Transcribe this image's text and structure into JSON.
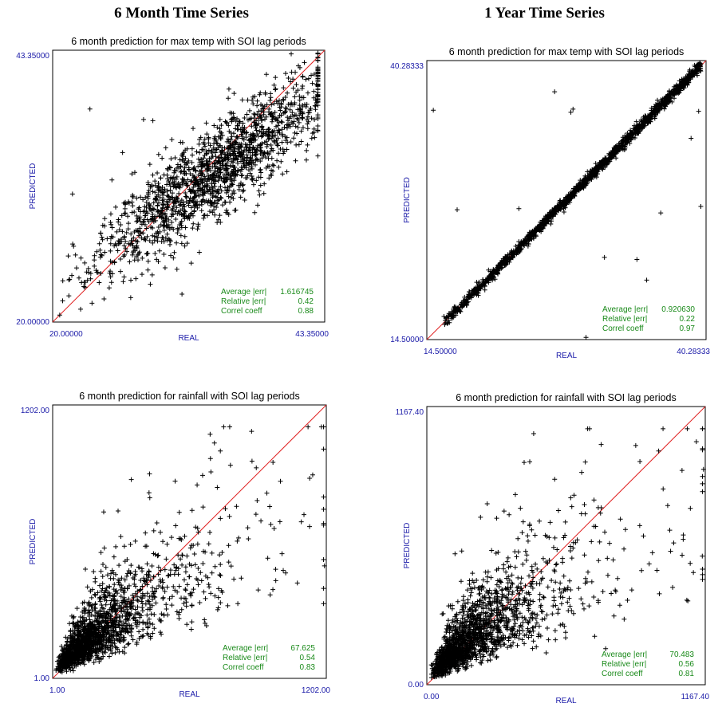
{
  "headings": {
    "left": "6 Month Time Series",
    "right": "1 Year Time Series"
  },
  "chart_data": [
    {
      "type": "scatter",
      "title": "6 month prediction for max temp with SOI lag periods",
      "xlabel": "REAL",
      "ylabel": "PREDICTED",
      "xlim": [
        20.0,
        43.35
      ],
      "ylim": [
        20.0,
        43.35
      ],
      "x_tick_labels": [
        "20.00000",
        "43.35000"
      ],
      "y_tick_labels": [
        "20.00000",
        "43.35000"
      ],
      "reference_line": "y = x",
      "marker": "+",
      "stats": [
        {
          "label": "Average |err|",
          "value": "1.616745"
        },
        {
          "label": "Relative |err|",
          "value": "0.42"
        },
        {
          "label": "Correl coeff",
          "value": "0.88"
        }
      ],
      "cloud": {
        "corr": 0.88,
        "n_points": 1600
      },
      "outliers": {
        "x": [
          23.2,
          27.8,
          28.6,
          21.7,
          26.7,
          31.1,
          22.4
        ],
        "y": [
          38.3,
          37.4,
          37.3,
          31.0,
          22.1,
          22.4,
          21.1
        ]
      }
    },
    {
      "type": "scatter",
      "title": "6 month prediction for max temp with SOI lag periods",
      "xlabel": "REAL",
      "ylabel": "PREDICTED",
      "xlim": [
        14.5,
        40.28333
      ],
      "ylim": [
        14.5,
        40.28333
      ],
      "x_tick_labels": [
        "14.50000",
        "40.28333"
      ],
      "y_tick_labels": [
        "14.50000",
        "40.28333"
      ],
      "reference_line": "y = x",
      "marker": "+",
      "stats": [
        {
          "label": "Average |err|",
          "value": "0.920630"
        },
        {
          "label": "Relative |err|",
          "value": "0.22"
        },
        {
          "label": "Correl coeff",
          "value": "0.97"
        }
      ],
      "cloud": {
        "corr": 0.97,
        "n_points": 1600
      },
      "outliers": {
        "x": [
          15.1,
          17.3,
          26.3,
          27.8,
          28.0,
          30.9,
          33.9,
          34.8,
          36.1,
          39.6,
          39.8,
          38.9,
          23.0,
          29.2
        ],
        "y": [
          35.7,
          26.5,
          37.4,
          35.5,
          35.8,
          22.1,
          21.9,
          20.0,
          26.2,
          35.6,
          26.8,
          33.1,
          26.6,
          14.7
        ]
      }
    },
    {
      "type": "scatter",
      "title": "6 month prediction for rainfall with SOI lag periods",
      "xlabel": "REAL",
      "ylabel": "PREDICTED",
      "xlim": [
        1.0,
        1202.0
      ],
      "ylim": [
        1.0,
        1202.0
      ],
      "x_tick_labels": [
        "1.00",
        "1202.00"
      ],
      "y_tick_labels": [
        "1.00",
        "1202.00"
      ],
      "reference_line": "y = x",
      "marker": "+",
      "stats": [
        {
          "label": "Average |err|",
          "value": "67.625"
        },
        {
          "label": "Relative |err|",
          "value": "0.54"
        },
        {
          "label": "Correl coeff",
          "value": "0.83"
        }
      ],
      "cloud": {
        "corr": 0.83,
        "n_points": 1700
      },
      "outliers": {
        "x": [
          737,
          968,
          1104,
          1194,
          1013,
          1075,
          876,
          1129
        ],
        "y": [
          1000,
          950,
          720,
          495,
          475,
          420,
          955,
          880
        ]
      }
    },
    {
      "type": "scatter",
      "title": "6 month prediction for rainfall  with SOI lag periods",
      "xlabel": "REAL",
      "ylabel": "PREDICTED",
      "xlim": [
        0.0,
        1167.4
      ],
      "ylim": [
        0.0,
        1167.4
      ],
      "x_tick_labels": [
        "0.00",
        "1167.40"
      ],
      "y_tick_labels": [
        "0.00",
        "1167.40"
      ],
      "reference_line": "y = x",
      "marker": "+",
      "stats": [
        {
          "label": "Average |err|",
          "value": "70.483"
        },
        {
          "label": "Relative |err|",
          "value": "0.56"
        },
        {
          "label": "Correl coeff",
          "value": "0.81"
        }
      ],
      "cloud": {
        "corr": 0.81,
        "n_points": 1700
      },
      "outliers": {
        "x": [
          731,
          1130,
          1160,
          1105,
          1155,
          965,
          1035,
          1090,
          1075
        ],
        "y": [
          1008,
          1020,
          904,
          740,
          540,
          480,
          595,
          355,
          610
        ]
      }
    }
  ]
}
